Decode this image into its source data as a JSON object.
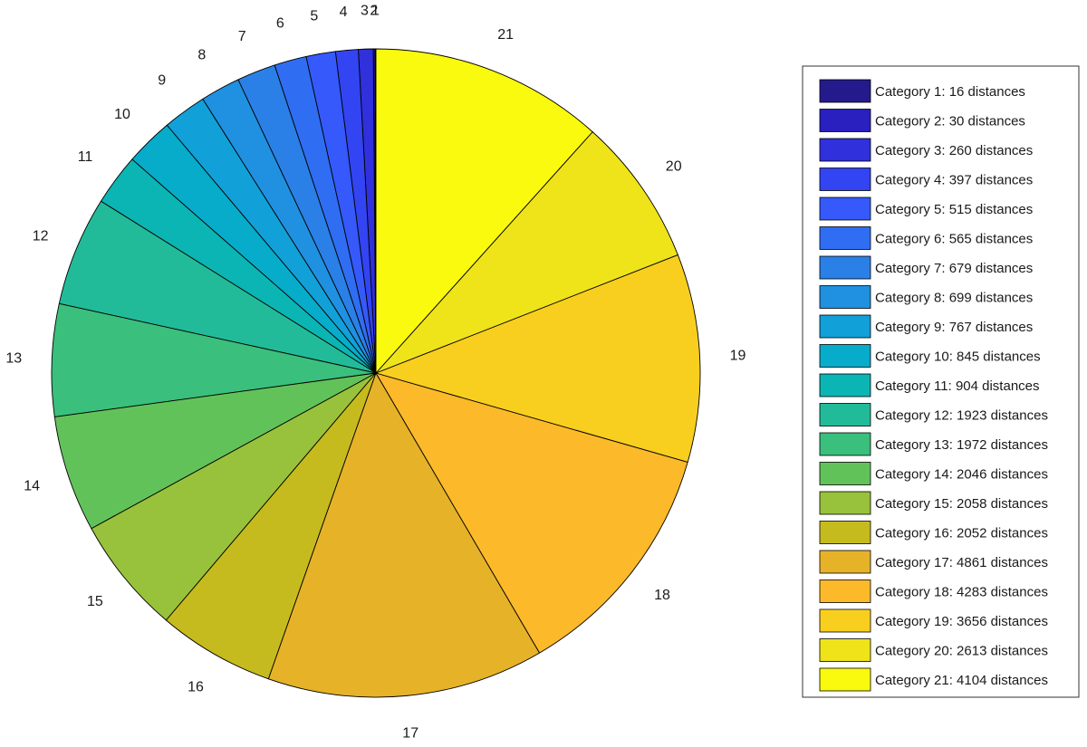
{
  "chart_data": {
    "type": "pie",
    "start": "12 o'clock",
    "direction": "counterclockwise",
    "legend": "right",
    "slices": [
      {
        "label": "1",
        "value": 16,
        "legend": "Category 1: 16 distances",
        "color": "#251a8c"
      },
      {
        "label": "2",
        "value": 30,
        "legend": "Category 2: 30 distances",
        "color": "#2a1fbf"
      },
      {
        "label": "3",
        "value": 260,
        "legend": "Category 3: 260 distances",
        "color": "#3030dc"
      },
      {
        "label": "4",
        "value": 397,
        "legend": "Category 4: 397 distances",
        "color": "#3344f2"
      },
      {
        "label": "5",
        "value": 515,
        "legend": "Category 5: 515 distances",
        "color": "#3559fa"
      },
      {
        "label": "6",
        "value": 565,
        "legend": "Category 6: 565 distances",
        "color": "#2f6ef2"
      },
      {
        "label": "7",
        "value": 679,
        "legend": "Category 7: 679 distances",
        "color": "#2a80e6"
      },
      {
        "label": "8",
        "value": 699,
        "legend": "Category 8: 699 distances",
        "color": "#1f91e0"
      },
      {
        "label": "9",
        "value": 767,
        "legend": "Category 9: 767 distances",
        "color": "#12a0d8"
      },
      {
        "label": "10",
        "value": 845,
        "legend": "Category 10: 845 distances",
        "color": "#06acc9"
      },
      {
        "label": "11",
        "value": 904,
        "legend": "Category 11: 904 distances",
        "color": "#0bb5b3"
      },
      {
        "label": "12",
        "value": 1923,
        "legend": "Category 12: 1923 distances",
        "color": "#22bb99"
      },
      {
        "label": "13",
        "value": 1972,
        "legend": "Category 13: 1972 distances",
        "color": "#3abf7c"
      },
      {
        "label": "14",
        "value": 2046,
        "legend": "Category 14: 2046 distances",
        "color": "#62c25a"
      },
      {
        "label": "15",
        "value": 2058,
        "legend": "Category 15: 2058 distances",
        "color": "#98c23b"
      },
      {
        "label": "16",
        "value": 2052,
        "legend": "Category 16: 2052 distances",
        "color": "#c6bb1e"
      },
      {
        "label": "17",
        "value": 4861,
        "legend": "Category 17: 4861 distances",
        "color": "#e6b228"
      },
      {
        "label": "18",
        "value": 4283,
        "legend": "Category 18: 4283 distances",
        "color": "#fcb929"
      },
      {
        "label": "19",
        "value": 3656,
        "legend": "Category 19: 3656 distances",
        "color": "#f8cf1e"
      },
      {
        "label": "20",
        "value": 2613,
        "legend": "Category 20: 2613 distances",
        "color": "#efe31a"
      },
      {
        "label": "21",
        "value": 4104,
        "legend": "Category 21: 4104 distances",
        "color": "#fafa0e"
      }
    ]
  }
}
